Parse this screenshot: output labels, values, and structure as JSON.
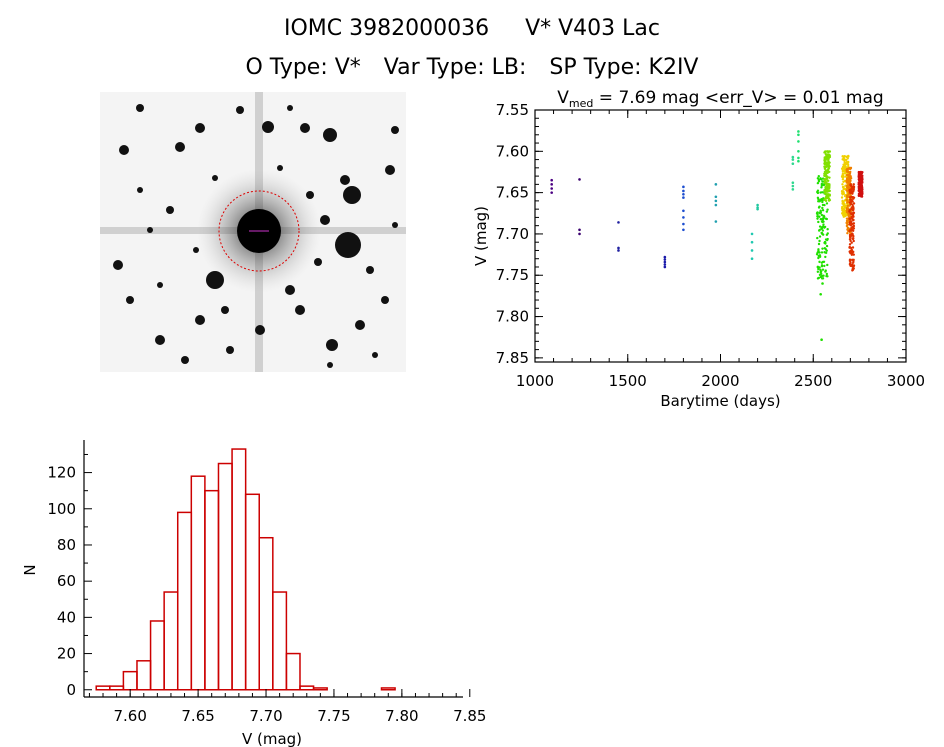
{
  "header": {
    "object_id": "IOMC 3982000036",
    "star_name": "V* V403 Lac",
    "o_type": "O Type: V*",
    "var_type": "Var Type: LB:",
    "sp_type": "SP Type: K2IV"
  },
  "colors": {
    "axis": "#000000",
    "histogram": "#cc0000",
    "aperture": "#dd0000"
  },
  "chart_data": [
    {
      "type": "image",
      "content": "stellar field thumbnail with target circled"
    },
    {
      "type": "scatter",
      "title_main": "V",
      "title_sub": "med",
      "title_rest": " = 7.69 mag <err_V> = 0.01 mag",
      "xlabel": "Barytime (days)",
      "ylabel": "V (mag)",
      "xlim": [
        1000,
        3000
      ],
      "ylim": [
        7.55,
        7.855
      ],
      "y_inverted": true,
      "xticks": [
        1000,
        1500,
        2000,
        2500,
        3000
      ],
      "xtick_labels": [
        "1000",
        "1500",
        "2000",
        "2500",
        "3000"
      ],
      "yticks": [
        7.55,
        7.6,
        7.65,
        7.7,
        7.75,
        7.8,
        7.85
      ],
      "ytick_labels": [
        "7.55",
        "7.60",
        "7.65",
        "7.70",
        "7.75",
        "7.80",
        "7.85"
      ],
      "groups": [
        {
          "x": 1090,
          "y": [
            7.635,
            7.64,
            7.645,
            7.65
          ],
          "color": "#4b0082"
        },
        {
          "x": 1240,
          "y": [
            7.634,
            7.695,
            7.7
          ],
          "color": "#3a006f"
        },
        {
          "x": 1450,
          "y": [
            7.686,
            7.717,
            7.72
          ],
          "color": "#2020a0"
        },
        {
          "x": 1700,
          "y": [
            7.728,
            7.731,
            7.734,
            7.737,
            7.74
          ],
          "color": "#1a1aaa"
        },
        {
          "x": 1800,
          "y": [
            7.643,
            7.648,
            7.652,
            7.656,
            7.672,
            7.68,
            7.688,
            7.695
          ],
          "color": "#1e4fd0"
        },
        {
          "x": 1975,
          "y": [
            7.64,
            7.655,
            7.66,
            7.665,
            7.685
          ],
          "color": "#20a0b0"
        },
        {
          "x": 2170,
          "y": [
            7.7,
            7.71,
            7.72,
            7.73
          ],
          "color": "#20c8b0"
        },
        {
          "x": 2200,
          "y": [
            7.665,
            7.668,
            7.67
          ],
          "color": "#20c8a0"
        },
        {
          "x": 2390,
          "y": [
            7.607,
            7.61,
            7.615,
            7.638,
            7.642,
            7.646
          ],
          "color": "#30d890"
        },
        {
          "x": 2420,
          "y": [
            7.576,
            7.58,
            7.588,
            7.6,
            7.608,
            7.612
          ],
          "color": "#20e070"
        }
      ],
      "bands": [
        {
          "x_from": 2520,
          "x_to": 2580,
          "y_from": 7.63,
          "y_to": 7.755,
          "color": "#20e000"
        },
        {
          "x_from": 2560,
          "x_to": 2590,
          "y_from": 7.6,
          "y_to": 7.66,
          "color": "#80e000"
        },
        {
          "x_from": 2655,
          "x_to": 2690,
          "y_from": 7.605,
          "y_to": 7.68,
          "color": "#f0d000"
        },
        {
          "x_from": 2680,
          "x_to": 2705,
          "y_from": 7.62,
          "y_to": 7.7,
          "color": "#f08000"
        },
        {
          "x_from": 2695,
          "x_to": 2720,
          "y_from": 7.64,
          "y_to": 7.745,
          "color": "#e03000"
        },
        {
          "x_from": 2745,
          "x_to": 2765,
          "y_from": 7.625,
          "y_to": 7.655,
          "color": "#d01010"
        }
      ],
      "outliers": [
        {
          "x": 2545,
          "y": 7.828,
          "color": "#20e000"
        },
        {
          "x": 2540,
          "y": 7.773,
          "color": "#20e000"
        },
        {
          "x": 2550,
          "y": 7.76,
          "color": "#20e000"
        }
      ]
    },
    {
      "type": "bar",
      "subtype": "histogram",
      "xlabel": "V (mag)",
      "ylabel": "N",
      "bin_start": 7.575,
      "bin_width": 0.01,
      "values": [
        2,
        2,
        10,
        16,
        38,
        54,
        98,
        118,
        110,
        125,
        133,
        108,
        84,
        54,
        20,
        2,
        1,
        0,
        0,
        0,
        0,
        1
      ],
      "xlim": [
        7.566,
        7.845
      ],
      "ylim": [
        -4,
        138
      ],
      "xticks": [
        7.6,
        7.65,
        7.7,
        7.75,
        7.8,
        7.85
      ],
      "xtick_labels": [
        "7.60",
        "7.65",
        "7.70",
        "7.75",
        "7.80",
        "7.85"
      ],
      "yticks": [
        0,
        20,
        40,
        60,
        80,
        100,
        120
      ],
      "ytick_labels": [
        "0",
        "20",
        "40",
        "60",
        "80",
        "100",
        "120"
      ]
    }
  ]
}
